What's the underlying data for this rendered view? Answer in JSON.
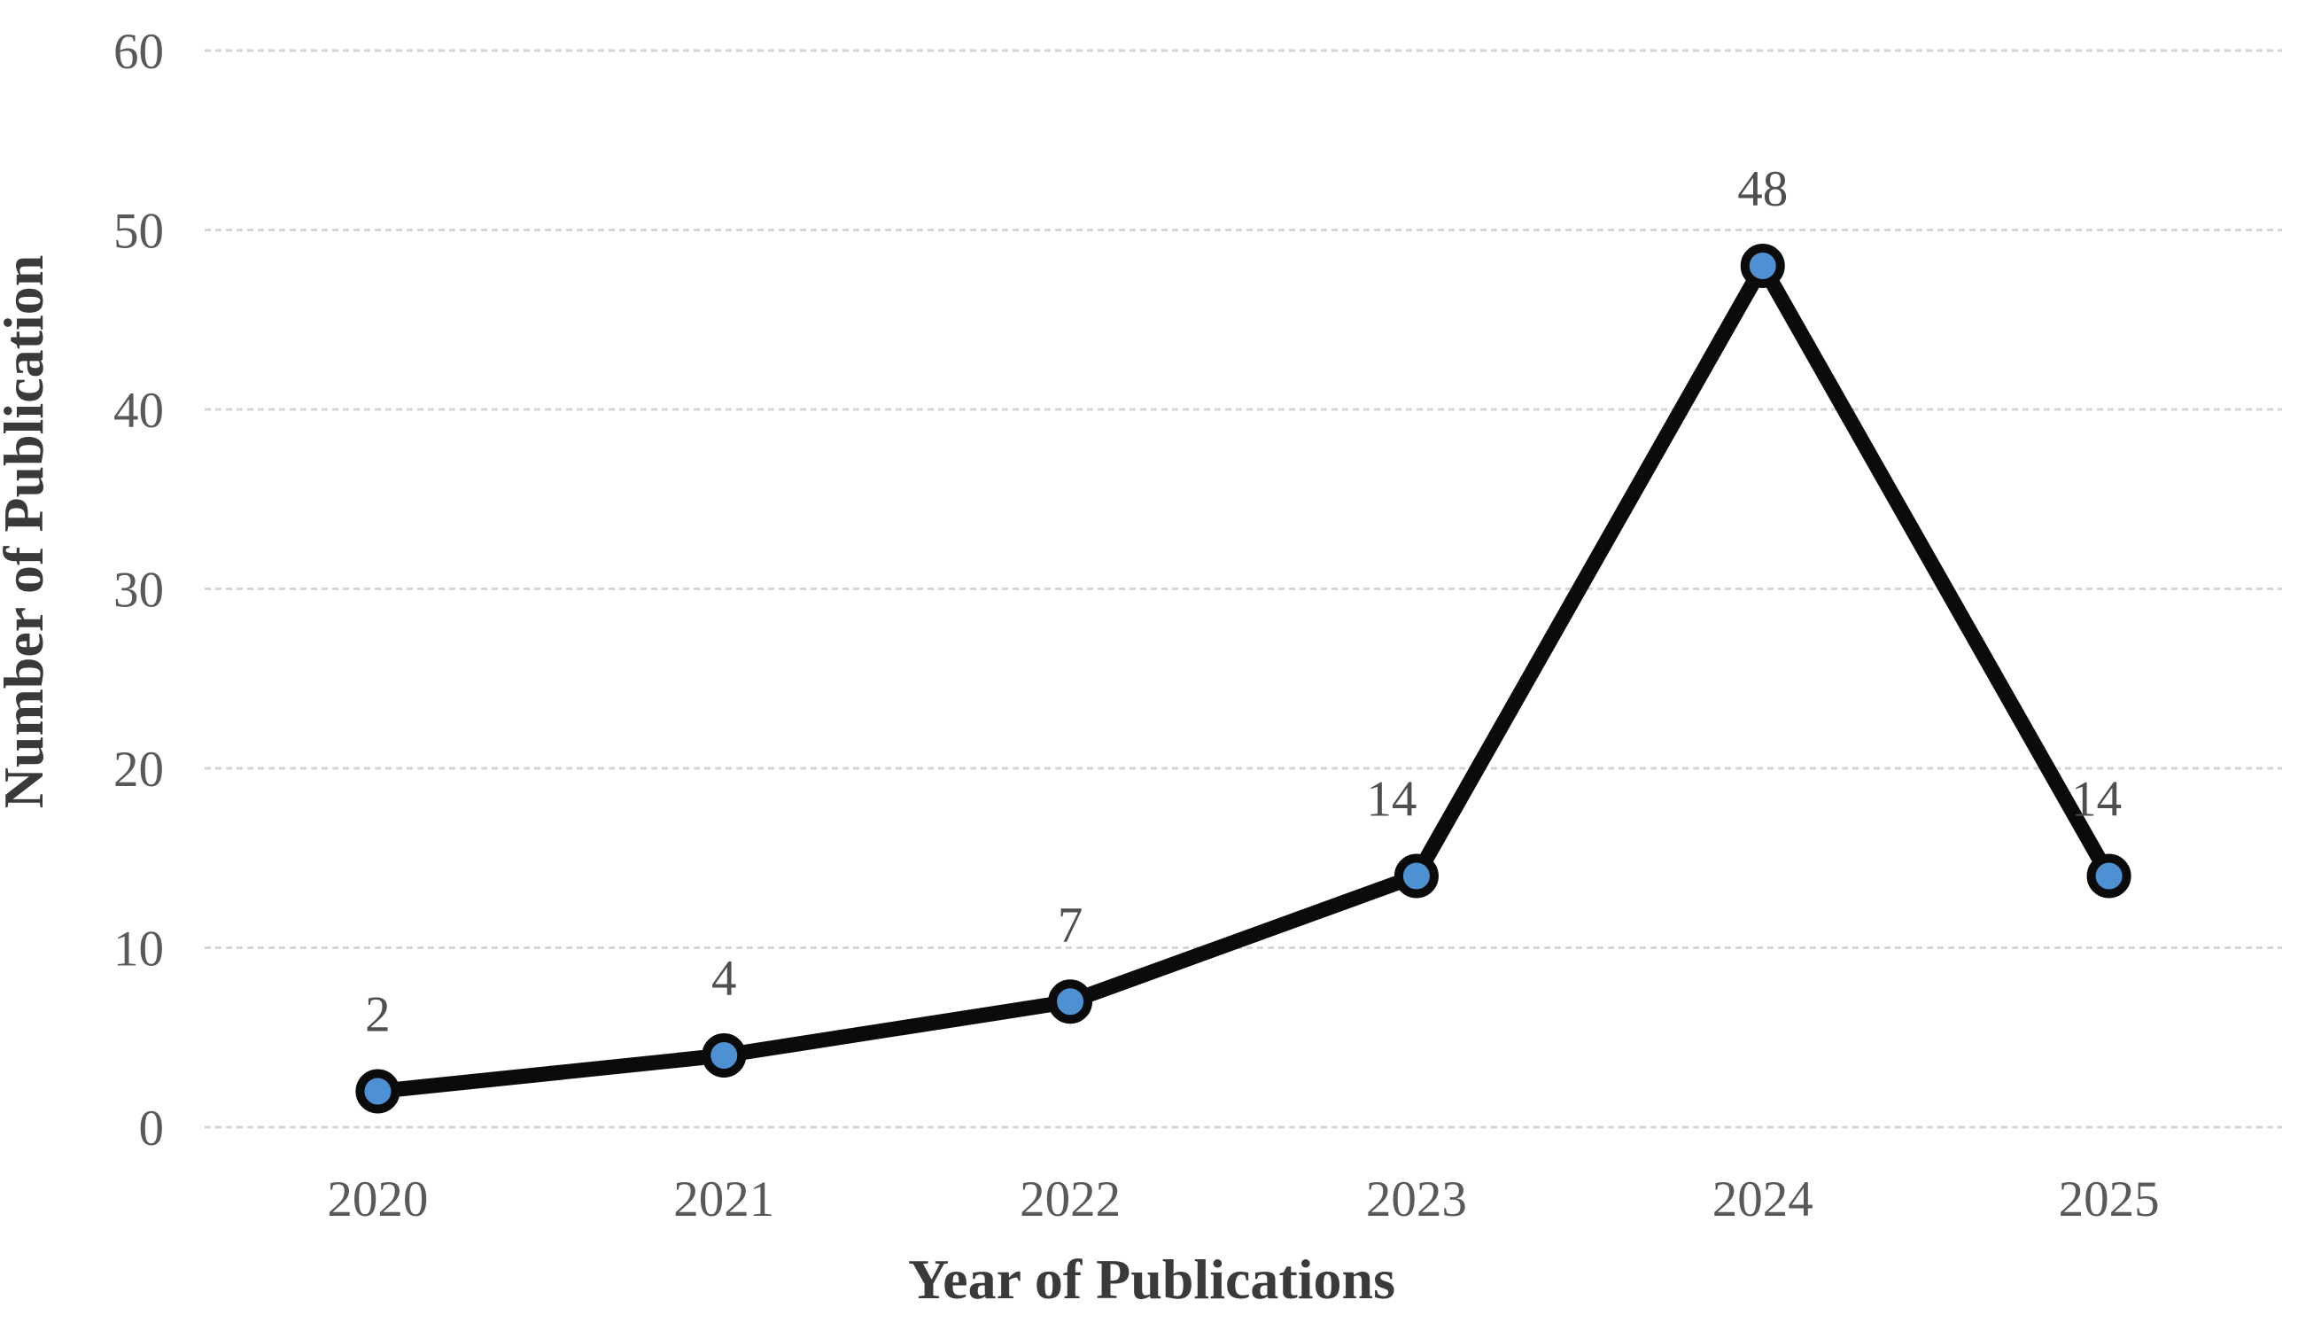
{
  "chart_data": {
    "type": "line",
    "categories": [
      "2020",
      "2021",
      "2022",
      "2023",
      "2024",
      "2025"
    ],
    "series": [
      {
        "name": "Number of Publication",
        "values": [
          2,
          4,
          7,
          14,
          48,
          14
        ]
      }
    ],
    "data_labels": [
      "2",
      "4",
      "7",
      "14",
      "48",
      "14"
    ],
    "title": "",
    "xlabel": "Year of Publications",
    "ylabel": "Number of Publication",
    "ylim": [
      0,
      60
    ],
    "yticks": [
      0,
      10,
      20,
      30,
      40,
      50,
      60
    ],
    "grid": "horizontal-dashed",
    "legend": "none",
    "marker_shape": "circle",
    "colors": {
      "line": "#0b0b0b",
      "marker_fill": "#4d91d2",
      "marker_stroke": "#0b0b0b",
      "gridline": "#d6d6d6",
      "tick_text": "#595959",
      "data_label_text": "#4f4f4f",
      "axis_title_text": "#3a3a3a",
      "background": "#ffffff"
    }
  }
}
